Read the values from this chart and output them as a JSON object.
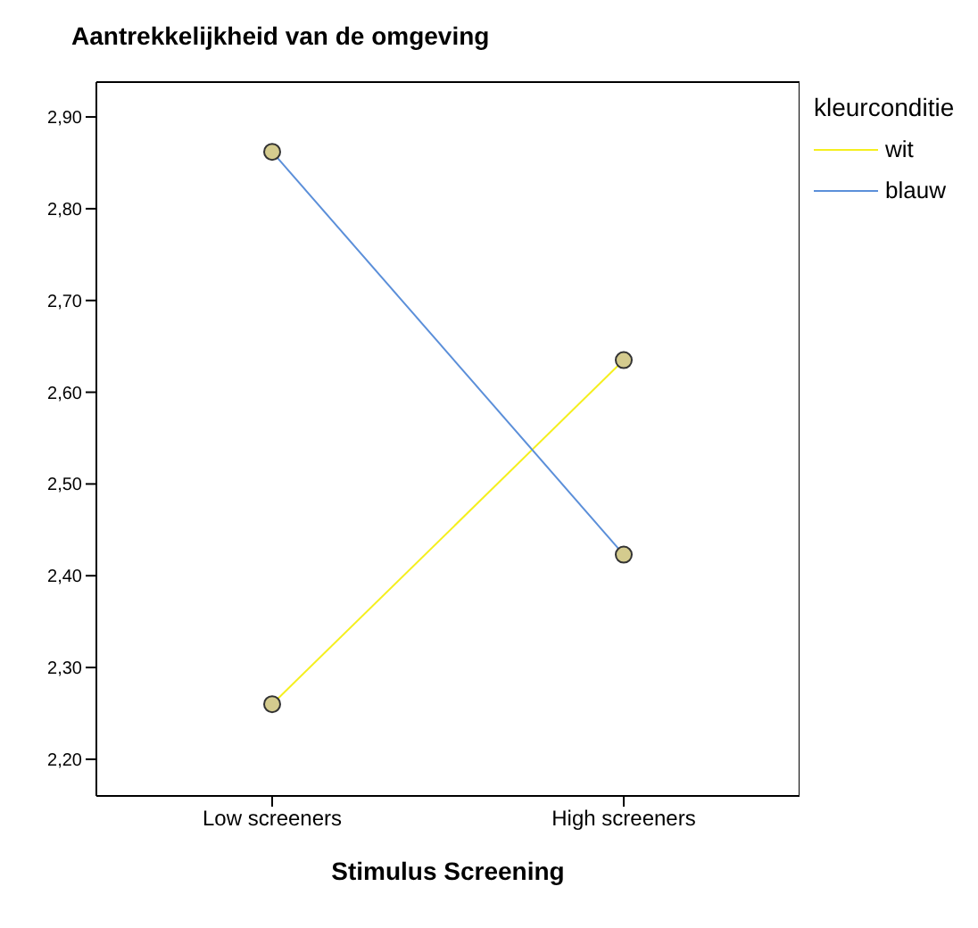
{
  "chart_data": {
    "type": "line",
    "title": "Aantrekkelijkheid van de omgeving",
    "xlabel": "Stimulus Screening",
    "legend_title": "kleurconditie",
    "categories": [
      "Low screeners",
      "High screeners"
    ],
    "series": [
      {
        "name": "wit",
        "color": "#f5ef1e",
        "values": [
          2.26,
          2.635
        ]
      },
      {
        "name": "blauw",
        "color": "#5b8fd9",
        "values": [
          2.862,
          2.423
        ]
      }
    ],
    "ylim": [
      2.16,
      2.938
    ],
    "yticks": [
      {
        "value": 2.2,
        "label": "2,20"
      },
      {
        "value": 2.3,
        "label": "2,30"
      },
      {
        "value": 2.4,
        "label": "2,40"
      },
      {
        "value": 2.5,
        "label": "2,50"
      },
      {
        "value": 2.6,
        "label": "2,60"
      },
      {
        "value": 2.7,
        "label": "2,70"
      },
      {
        "value": 2.8,
        "label": "2,80"
      },
      {
        "value": 2.9,
        "label": "2,90"
      }
    ],
    "grid": false,
    "legend": "top right",
    "marker": "circle",
    "line_style": "solid"
  }
}
